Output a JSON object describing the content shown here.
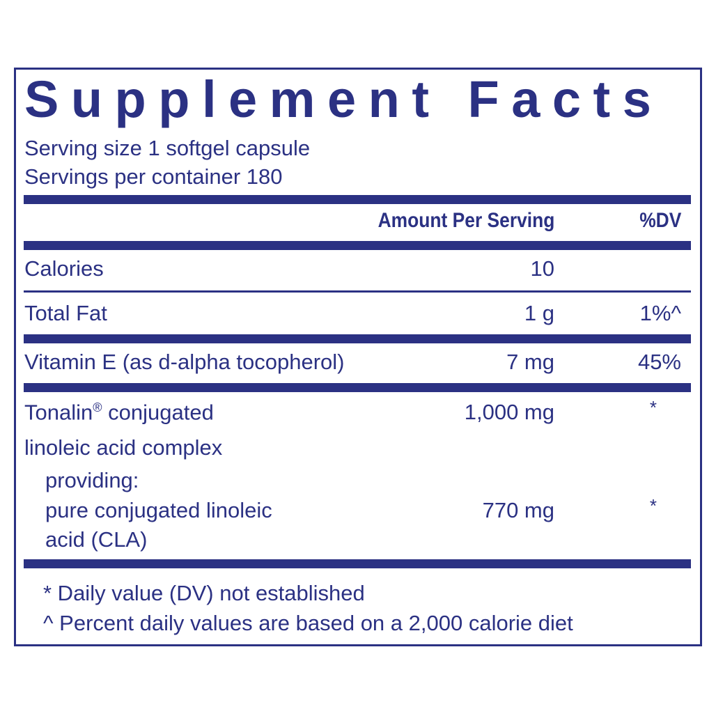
{
  "title": "Supplement Facts",
  "serving_size": "Serving size  1 softgel capsule",
  "servings_per_container": "Servings per container  180",
  "header": {
    "amount": "Amount Per Serving",
    "dv": "%DV"
  },
  "rows": [
    {
      "name": "Calories",
      "amount": "10",
      "dv": ""
    },
    {
      "name": "Total Fat",
      "amount": "1 g",
      "dv": "1%^"
    },
    {
      "name": "Vitamin E (as d-alpha tocopherol)",
      "amount": "7 mg",
      "dv": "45%"
    },
    {
      "name": "Tonalin",
      "name_sup": "®",
      "name_rest": " conjugated",
      "name_line2": "linoleic acid complex",
      "amount": "1,000 mg",
      "dv": "*"
    },
    {
      "name": "providing:",
      "name_line2": "pure conjugated linoleic",
      "name_line3": "acid (CLA)",
      "amount": "770 mg",
      "dv": "*"
    }
  ],
  "footnotes": [
    "* Daily value (DV) not established",
    "^ Percent daily values are based on a 2,000 calorie diet"
  ],
  "colors": {
    "label_blue": "#2b3183"
  }
}
